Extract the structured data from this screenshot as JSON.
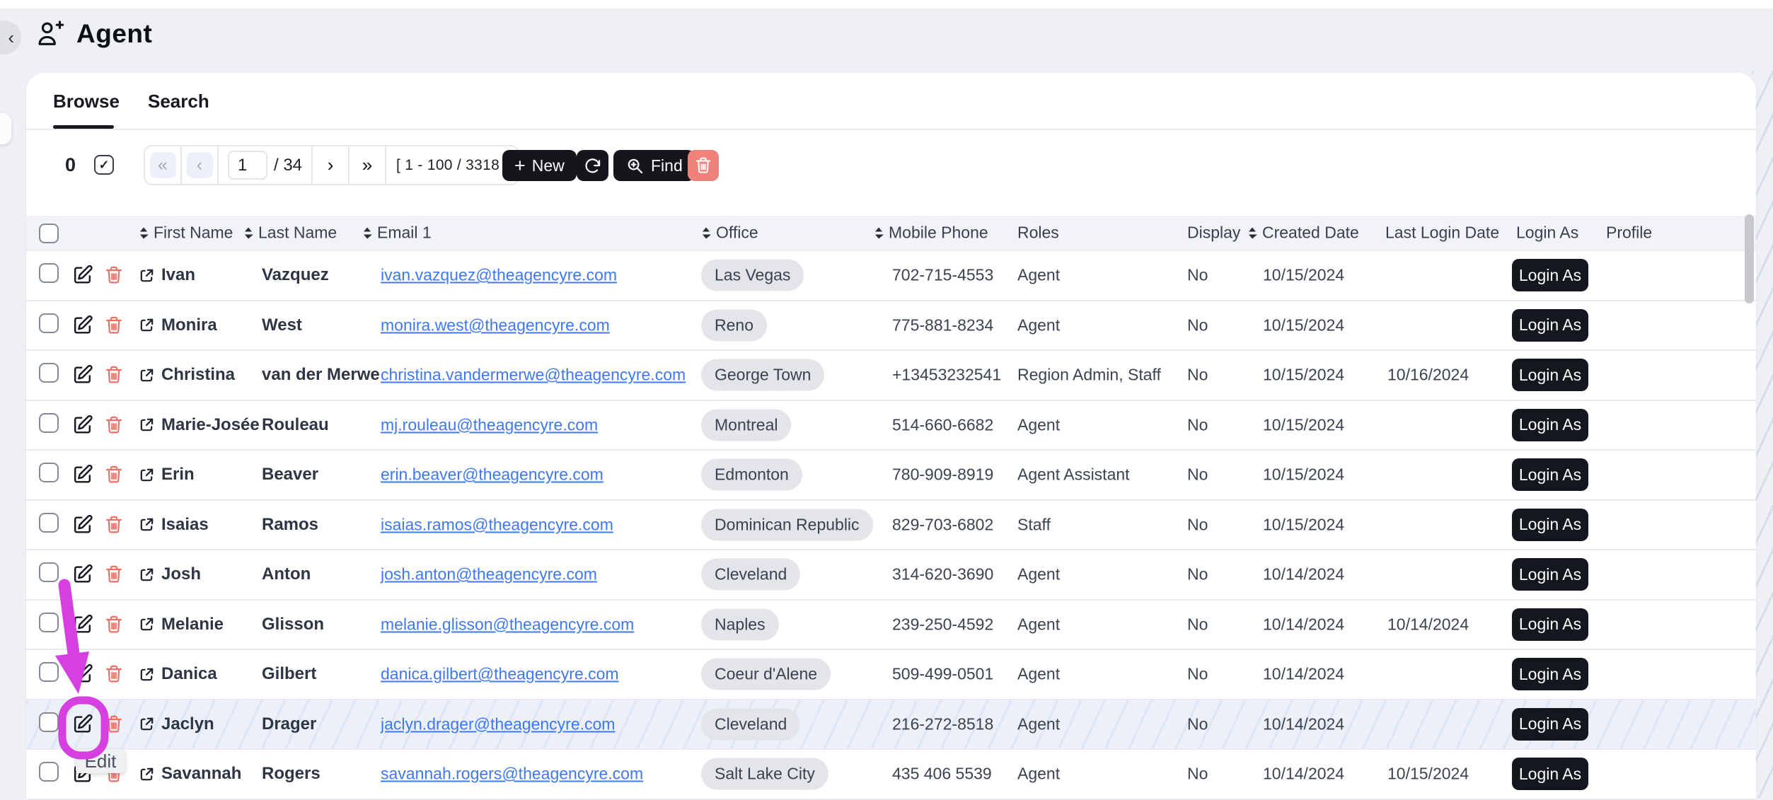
{
  "page": {
    "title": "Agent"
  },
  "icons": {
    "plus": "+",
    "check": "✓",
    "back": "‹",
    "first": "«",
    "prev": "‹",
    "next": "›",
    "last": "»"
  },
  "tabs": [
    {
      "label": "Browse",
      "active": true
    },
    {
      "label": "Search",
      "active": false
    }
  ],
  "toolbar": {
    "selected_count": "0",
    "pager": {
      "page": "1",
      "page_total": "/ 34",
      "range": "[ 1 - 100 / 3318 ]"
    },
    "new_label": "New",
    "find_label": "Find"
  },
  "table": {
    "columns": [
      {
        "label": "First Name",
        "sortable": true
      },
      {
        "label": "Last Name",
        "sortable": true
      },
      {
        "label": "Email 1",
        "sortable": true
      },
      {
        "label": "Office",
        "sortable": true
      },
      {
        "label": "Mobile Phone",
        "sortable": true
      },
      {
        "label": "Roles",
        "sortable": false
      },
      {
        "label": "Display",
        "sortable": false
      },
      {
        "label": "Created Date",
        "sortable": true
      },
      {
        "label": "Last Login Date",
        "sortable": false
      },
      {
        "label": "Login As",
        "sortable": false
      },
      {
        "label": "Profile",
        "sortable": false
      }
    ],
    "rows": [
      {
        "first_name": "Ivan",
        "last_name": "Vazquez",
        "email": "ivan.vazquez@theagencyre.com",
        "office": "Las Vegas",
        "mobile_phone": "702-715-4553",
        "roles": "Agent",
        "display": "No",
        "created_date": "10/15/2024",
        "last_login_date": "",
        "login_as": "Login As",
        "highlighted": false
      },
      {
        "first_name": "Monira",
        "last_name": "West",
        "email": "monira.west@theagencyre.com",
        "office": "Reno",
        "mobile_phone": "775-881-8234",
        "roles": "Agent",
        "display": "No",
        "created_date": "10/15/2024",
        "last_login_date": "",
        "login_as": "Login As",
        "highlighted": false
      },
      {
        "first_name": "Christina",
        "last_name": "van der Merwe",
        "email": "christina.vandermerwe@theagencyre.com",
        "office": "George Town",
        "mobile_phone": "+13453232541",
        "roles": "Region Admin, Staff",
        "display": "No",
        "created_date": "10/15/2024",
        "last_login_date": "10/16/2024",
        "login_as": "Login As",
        "highlighted": false
      },
      {
        "first_name": "Marie-Josée",
        "last_name": "Rouleau",
        "email": "mj.rouleau@theagencyre.com",
        "office": "Montreal",
        "mobile_phone": "514-660-6682",
        "roles": "Agent",
        "display": "No",
        "created_date": "10/15/2024",
        "last_login_date": "",
        "login_as": "Login As",
        "highlighted": false
      },
      {
        "first_name": "Erin",
        "last_name": "Beaver",
        "email": "erin.beaver@theagencyre.com",
        "office": "Edmonton",
        "mobile_phone": "780-909-8919",
        "roles": "Agent Assistant",
        "display": "No",
        "created_date": "10/15/2024",
        "last_login_date": "",
        "login_as": "Login As",
        "highlighted": false
      },
      {
        "first_name": "Isaias",
        "last_name": "Ramos",
        "email": "isaias.ramos@theagencyre.com",
        "office": "Dominican Republic",
        "mobile_phone": "829-703-6802",
        "roles": "Staff",
        "display": "No",
        "created_date": "10/15/2024",
        "last_login_date": "",
        "login_as": "Login As",
        "highlighted": false
      },
      {
        "first_name": "Josh",
        "last_name": "Anton",
        "email": "josh.anton@theagencyre.com",
        "office": "Cleveland",
        "mobile_phone": "314-620-3690",
        "roles": "Agent",
        "display": "No",
        "created_date": "10/14/2024",
        "last_login_date": "",
        "login_as": "Login As",
        "highlighted": false
      },
      {
        "first_name": "Melanie",
        "last_name": "Glisson",
        "email": "melanie.glisson@theagencyre.com",
        "office": "Naples",
        "mobile_phone": "239-250-4592",
        "roles": "Agent",
        "display": "No",
        "created_date": "10/14/2024",
        "last_login_date": "10/14/2024",
        "login_as": "Login As",
        "highlighted": false
      },
      {
        "first_name": "Danica",
        "last_name": "Gilbert",
        "email": "danica.gilbert@theagencyre.com",
        "office": "Coeur d'Alene",
        "mobile_phone": "509-499-0501",
        "roles": "Agent",
        "display": "No",
        "created_date": "10/14/2024",
        "last_login_date": "",
        "login_as": "Login As",
        "highlighted": false
      },
      {
        "first_name": "Jaclyn",
        "last_name": "Drager",
        "email": "jaclyn.drager@theagencyre.com",
        "office": "Cleveland",
        "mobile_phone": "216-272-8518",
        "roles": "Agent",
        "display": "No",
        "created_date": "10/14/2024",
        "last_login_date": "",
        "login_as": "Login As",
        "highlighted": true
      },
      {
        "first_name": "Savannah",
        "last_name": "Rogers",
        "email": "savannah.rogers@theagencyre.com",
        "office": "Salt Lake City",
        "mobile_phone": "435 406 5539",
        "roles": "Agent",
        "display": "No",
        "created_date": "10/14/2024",
        "last_login_date": "10/15/2024",
        "login_as": "Login As",
        "highlighted": false
      }
    ]
  },
  "annotation": {
    "tooltip": "Edit",
    "color": "#d63fe0"
  },
  "colors": {
    "primary_button": "#14161c",
    "danger_icon": "#ee7166",
    "danger_button_bg": "#f0827b",
    "link": "#3f78f3",
    "badge_bg": "#e3e5e9",
    "row_highlight": "#ecf0f9",
    "annotation": "#d63fe0",
    "header_band": "#f1f3f7",
    "page_bg": "#eef0f3"
  }
}
